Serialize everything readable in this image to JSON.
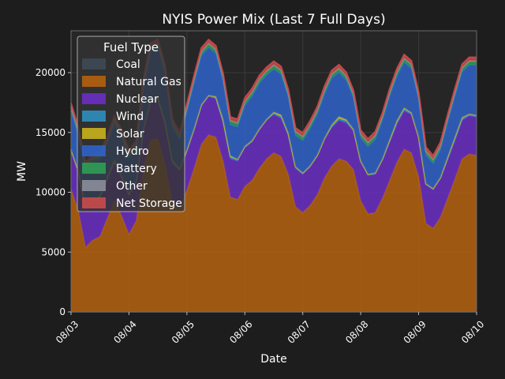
{
  "chart_data": {
    "type": "area",
    "stacked": true,
    "title": "NYIS Power Mix (Last 7 Full Days)",
    "xlabel": "Date",
    "ylabel": "MW",
    "ylim": [
      0,
      23500
    ],
    "yticks": [
      0,
      5000,
      10000,
      15000,
      20000
    ],
    "xlim": [
      0,
      7
    ],
    "xtick_labels": [
      "08/03",
      "08/04",
      "08/05",
      "08/06",
      "08/07",
      "08/08",
      "08/09",
      "08/10"
    ],
    "grid": true,
    "legend": {
      "title": "Fuel Type",
      "placement": "top-left"
    },
    "colors": {
      "background": "#1d1d1d",
      "plot_background": "#262626",
      "text": "#ffffff",
      "axis": "#6b6b6b"
    },
    "x": [
      0,
      0.125,
      0.25,
      0.375,
      0.5,
      0.625,
      0.75,
      0.875,
      1,
      1.125,
      1.25,
      1.375,
      1.5,
      1.625,
      1.75,
      1.875,
      2,
      2.125,
      2.25,
      2.375,
      2.5,
      2.625,
      2.75,
      2.875,
      3,
      3.125,
      3.25,
      3.375,
      3.5,
      3.625,
      3.75,
      3.875,
      4,
      4.125,
      4.25,
      4.375,
      4.5,
      4.625,
      4.75,
      4.875,
      5,
      5.125,
      5.25,
      5.375,
      5.5,
      5.625,
      5.75,
      5.875,
      6,
      6.125,
      6.25,
      6.375,
      6.5,
      6.625,
      6.75,
      6.875,
      7
    ],
    "series": [
      {
        "name": "Coal",
        "color": "#3f4a57",
        "values": [
          0,
          0,
          0,
          0,
          0,
          0,
          0,
          0,
          0,
          0,
          0,
          0,
          0,
          0,
          0,
          0,
          0,
          0,
          0,
          0,
          0,
          0,
          0,
          0,
          0,
          0,
          0,
          0,
          0,
          0,
          0,
          0,
          0,
          0,
          0,
          0,
          0,
          0,
          0,
          0,
          0,
          0,
          0,
          0,
          0,
          0,
          0,
          0,
          0,
          0,
          0,
          0,
          0,
          0,
          0,
          0,
          0
        ]
      },
      {
        "name": "Natural Gas",
        "color": "#b5620f",
        "values": [
          10300,
          8500,
          5400,
          6000,
          6300,
          7800,
          9300,
          8000,
          6500,
          7600,
          12000,
          14400,
          14500,
          12400,
          9200,
          8600,
          10200,
          12000,
          14000,
          14800,
          14600,
          12600,
          9600,
          9400,
          10500,
          11000,
          12000,
          12800,
          13300,
          13000,
          11500,
          8800,
          8300,
          8900,
          9800,
          11200,
          12200,
          12800,
          12600,
          11900,
          9300,
          8200,
          8300,
          9500,
          11000,
          12500,
          13600,
          13300,
          11300,
          7400,
          7000,
          7900,
          9500,
          11100,
          12800,
          13200,
          13100
        ]
      },
      {
        "name": "Nuclear",
        "color": "#6a2fc4",
        "values": [
          3200,
          3200,
          3200,
          3200,
          3200,
          3200,
          3200,
          3200,
          3200,
          3200,
          3200,
          3200,
          3200,
          3200,
          3200,
          3200,
          3200,
          3200,
          3200,
          3200,
          3200,
          3200,
          3200,
          3200,
          3200,
          3200,
          3200,
          3200,
          3200,
          3200,
          3200,
          3200,
          3200,
          3200,
          3200,
          3200,
          3200,
          3200,
          3200,
          3200,
          3200,
          3200,
          3200,
          3200,
          3200,
          3200,
          3200,
          3200,
          3200,
          3200,
          3200,
          3200,
          3200,
          3200,
          3200,
          3200,
          3200
        ]
      },
      {
        "name": "Wind",
        "color": "#2f8fbf",
        "values": [
          100,
          120,
          150,
          130,
          110,
          100,
          120,
          140,
          160,
          150,
          130,
          120,
          110,
          130,
          150,
          170,
          160,
          140,
          120,
          110,
          100,
          120,
          140,
          160,
          150,
          130,
          110,
          100,
          110,
          130,
          150,
          140,
          120,
          110,
          100,
          120,
          130,
          150,
          170,
          160,
          140,
          120,
          110,
          100,
          120,
          140,
          160,
          150,
          130,
          120,
          110,
          130,
          150,
          170,
          160,
          140,
          130
        ]
      },
      {
        "name": "Solar",
        "color": "#c9b31d",
        "values": [
          0,
          0,
          0,
          0,
          100,
          150,
          100,
          0,
          0,
          0,
          0,
          0,
          120,
          180,
          120,
          0,
          0,
          0,
          0,
          0,
          100,
          160,
          110,
          0,
          0,
          0,
          0,
          0,
          90,
          140,
          100,
          0,
          0,
          0,
          0,
          0,
          110,
          170,
          110,
          0,
          0,
          0,
          0,
          0,
          100,
          150,
          100,
          0,
          0,
          0,
          0,
          0,
          90,
          140,
          100,
          0,
          0
        ]
      },
      {
        "name": "Hydro",
        "color": "#2f63c9",
        "values": [
          3200,
          3000,
          3100,
          3200,
          3000,
          2800,
          3000,
          3200,
          3000,
          2700,
          3500,
          4100,
          4200,
          4000,
          2800,
          2400,
          3200,
          3800,
          4100,
          4000,
          3600,
          3200,
          2600,
          2700,
          3400,
          3700,
          3800,
          3700,
          3600,
          3400,
          3000,
          2600,
          2700,
          3100,
          3400,
          3700,
          3900,
          3700,
          3300,
          2600,
          1900,
          2300,
          2800,
          3200,
          3600,
          3700,
          3800,
          3700,
          3100,
          2400,
          2100,
          2300,
          2900,
          3400,
          3800,
          4100,
          4200
        ]
      },
      {
        "name": "Battery",
        "color": "#2e9e54",
        "values": [
          300,
          300,
          300,
          300,
          300,
          300,
          300,
          300,
          300,
          300,
          300,
          300,
          300,
          300,
          300,
          300,
          300,
          300,
          300,
          300,
          300,
          300,
          300,
          300,
          300,
          300,
          300,
          300,
          300,
          300,
          300,
          300,
          300,
          300,
          300,
          300,
          300,
          300,
          300,
          300,
          300,
          300,
          300,
          300,
          300,
          300,
          300,
          300,
          300,
          300,
          300,
          300,
          300,
          300,
          300,
          300,
          300
        ]
      },
      {
        "name": "Other",
        "color": "#8a8f9a",
        "values": [
          50,
          50,
          50,
          50,
          50,
          50,
          50,
          50,
          50,
          50,
          50,
          50,
          50,
          50,
          50,
          50,
          50,
          50,
          50,
          50,
          50,
          50,
          50,
          50,
          50,
          50,
          50,
          50,
          50,
          50,
          50,
          50,
          50,
          50,
          50,
          50,
          50,
          50,
          50,
          50,
          50,
          50,
          50,
          50,
          50,
          50,
          50,
          50,
          50,
          50,
          50,
          50,
          50,
          50,
          50,
          50,
          50
        ]
      },
      {
        "name": "Net Storage",
        "color": "#c94b4b",
        "values": [
          300,
          300,
          300,
          300,
          300,
          300,
          300,
          300,
          300,
          300,
          300,
          300,
          300,
          300,
          300,
          300,
          300,
          300,
          300,
          300,
          300,
          300,
          300,
          300,
          300,
          300,
          300,
          300,
          300,
          300,
          300,
          300,
          300,
          300,
          300,
          300,
          300,
          300,
          300,
          300,
          300,
          300,
          300,
          300,
          300,
          300,
          300,
          300,
          300,
          300,
          300,
          300,
          300,
          300,
          300,
          300,
          300
        ]
      }
    ]
  }
}
